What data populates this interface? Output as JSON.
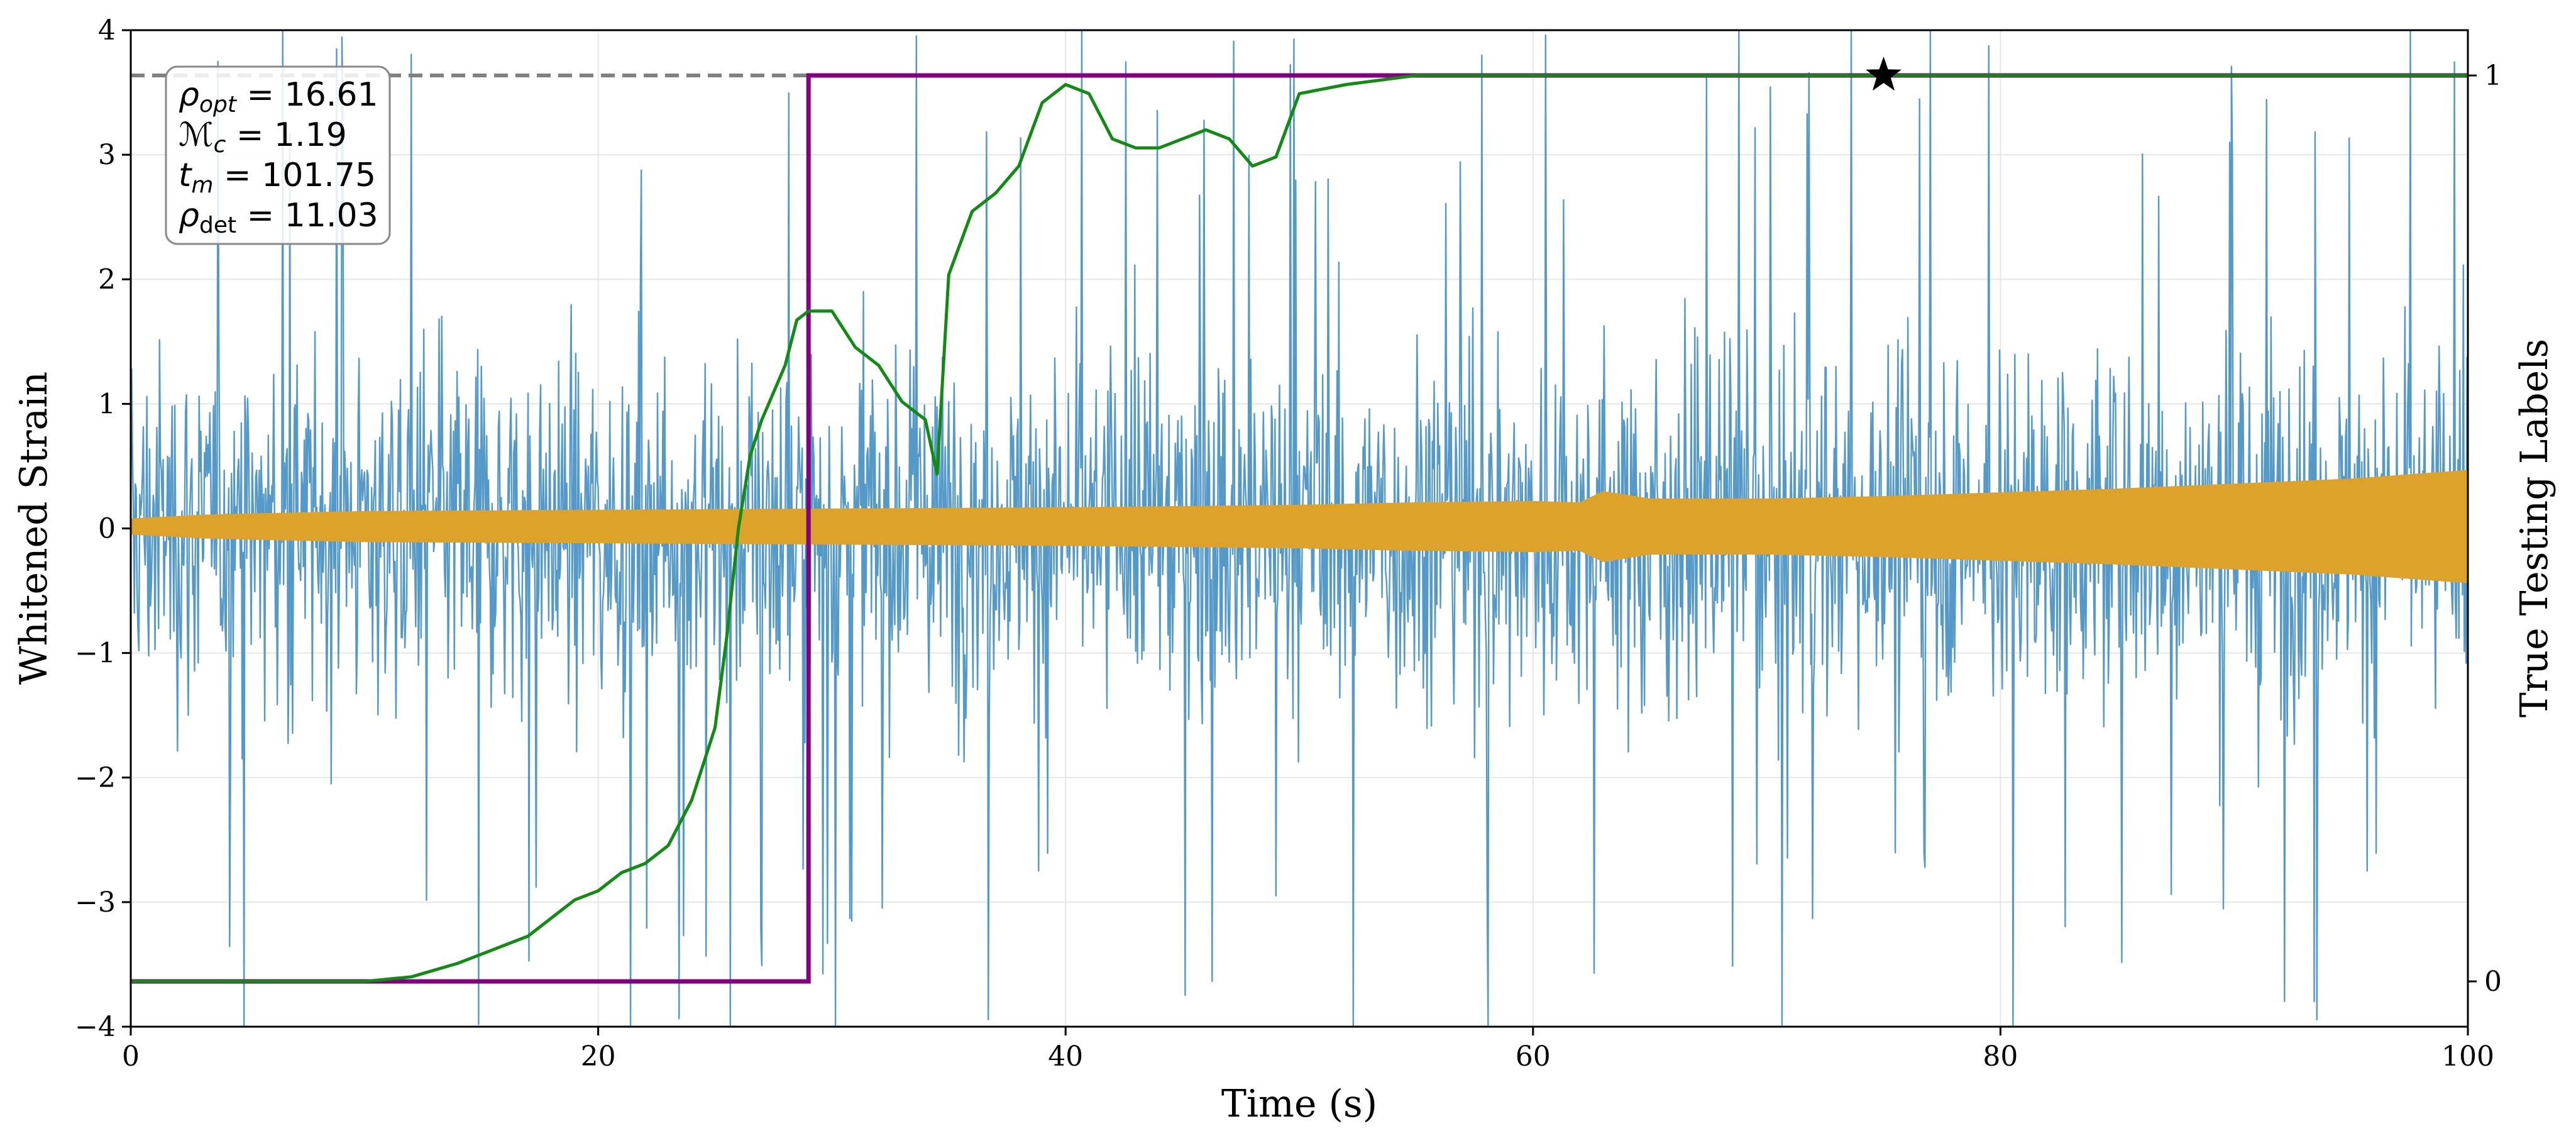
{
  "chart_data": {
    "type": "line",
    "xlabel": "Time (s)",
    "ylabel": "Whitened Strain",
    "y2label": "True Testing Labels",
    "xlim": [
      0,
      100
    ],
    "ylim": [
      -4,
      4
    ],
    "y2lim": [
      -0.05,
      1.05
    ],
    "xticks": [
      0,
      20,
      40,
      60,
      80,
      100
    ],
    "yticks": [
      -4,
      -3,
      -2,
      -1,
      0,
      1,
      2,
      3,
      4
    ],
    "y2ticks": [
      0,
      1
    ],
    "grid": true,
    "colors": {
      "noise": "#5599c8",
      "signal": "#dca22a",
      "prediction": "#138a13",
      "label": "#800080",
      "threshold": "#808080",
      "marker": "#000000"
    },
    "info_box": {
      "rho_opt": "16.61",
      "mc": "1.19",
      "tm": "101.75",
      "rho_det": "11.03"
    },
    "series": [
      {
        "kind": "whitened_strain_noise",
        "axis": "left",
        "typical_range": [
          -2.3,
          2.3
        ],
        "peak_range": [
          -4,
          4
        ]
      },
      {
        "kind": "signal_envelope",
        "axis": "left",
        "x": [
          0,
          3,
          5,
          10,
          20,
          30,
          40,
          50,
          55,
          60,
          62,
          63,
          65,
          70,
          75,
          80,
          85,
          90,
          95,
          100
        ],
        "amplitude": [
          0.06,
          0.09,
          0.1,
          0.12,
          0.13,
          0.14,
          0.15,
          0.17,
          0.19,
          0.2,
          0.19,
          0.28,
          0.22,
          0.22,
          0.24,
          0.27,
          0.3,
          0.34,
          0.38,
          0.45
        ]
      },
      {
        "kind": "true_label",
        "axis": "right",
        "x": [
          0,
          29,
          29,
          100
        ],
        "y": [
          0,
          0,
          1,
          1
        ]
      },
      {
        "kind": "prediction",
        "axis": "right",
        "x": [
          0,
          10,
          12,
          14,
          16,
          17,
          18,
          19,
          20,
          21,
          22,
          23,
          24,
          25,
          25.5,
          26,
          26.5,
          27,
          27.5,
          28,
          28.5,
          29,
          29.5,
          30,
          31,
          32,
          33,
          34,
          34.5,
          35,
          36,
          37,
          38,
          39,
          40,
          41,
          42,
          43,
          44,
          45,
          46,
          47,
          48,
          49,
          50,
          52,
          55,
          60,
          100
        ],
        "y": [
          0,
          0,
          0.005,
          0.02,
          0.04,
          0.05,
          0.07,
          0.09,
          0.1,
          0.12,
          0.13,
          0.15,
          0.2,
          0.28,
          0.38,
          0.5,
          0.58,
          0.62,
          0.65,
          0.68,
          0.73,
          0.74,
          0.74,
          0.74,
          0.7,
          0.68,
          0.64,
          0.62,
          0.56,
          0.78,
          0.85,
          0.87,
          0.9,
          0.97,
          0.99,
          0.98,
          0.93,
          0.92,
          0.92,
          0.93,
          0.94,
          0.93,
          0.9,
          0.91,
          0.98,
          0.99,
          1.0,
          1.0,
          1.0
        ]
      },
      {
        "kind": "threshold",
        "axis": "right",
        "y": 1
      },
      {
        "kind": "detection_marker",
        "axis": "right",
        "x": 75,
        "y": 1
      }
    ]
  }
}
